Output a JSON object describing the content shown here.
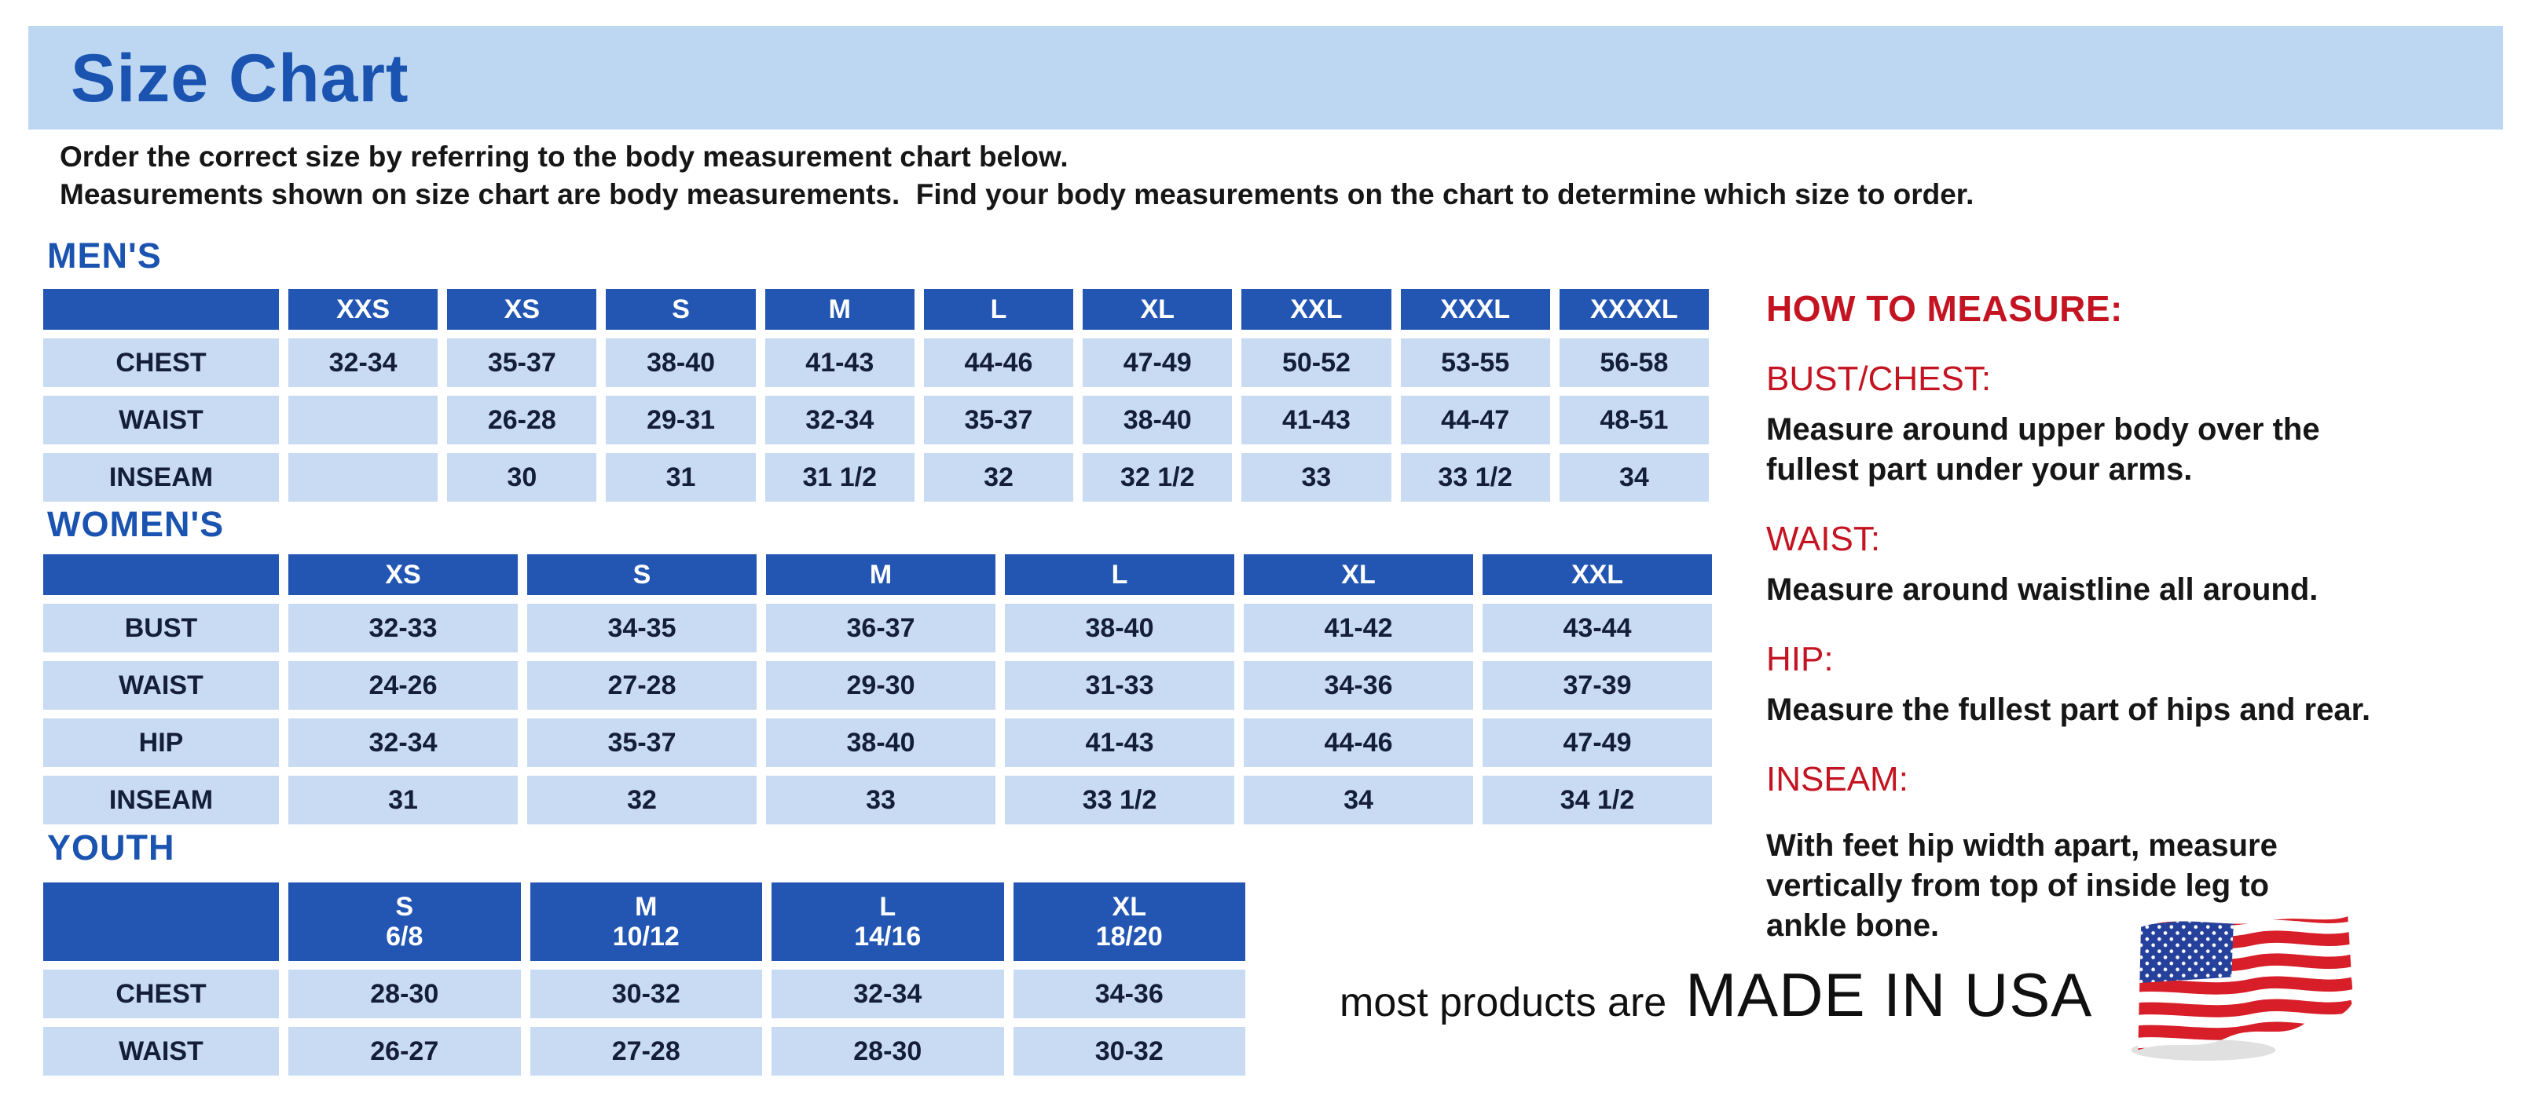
{
  "page": {
    "title": "Size Chart",
    "intro_lines": [
      "Order the correct size by referring to the body measurement chart below.",
      "Measurements shown on size chart are body measurements.  Find your body measurements on the chart to determine which size to order."
    ]
  },
  "tables": {
    "mens": {
      "heading": "MEN'S",
      "columns": [
        "XXS",
        "XS",
        "S",
        "M",
        "L",
        "XL",
        "XXL",
        "XXXL",
        "XXXXL"
      ],
      "rows": [
        {
          "label": "CHEST",
          "values": [
            "32-34",
            "35-37",
            "38-40",
            "41-43",
            "44-46",
            "47-49",
            "50-52",
            "53-55",
            "56-58"
          ]
        },
        {
          "label": "WAIST",
          "values": [
            "",
            "26-28",
            "29-31",
            "32-34",
            "35-37",
            "38-40",
            "41-43",
            "44-47",
            "48-51"
          ]
        },
        {
          "label": "INSEAM",
          "values": [
            "",
            "30",
            "31",
            "31 1/2",
            "32",
            "32 1/2",
            "33",
            "33 1/2",
            "34"
          ]
        }
      ]
    },
    "womens": {
      "heading": "WOMEN'S",
      "columns": [
        "XS",
        "S",
        "M",
        "L",
        "XL",
        "XXL"
      ],
      "rows": [
        {
          "label": "BUST",
          "values": [
            "32-33",
            "34-35",
            "36-37",
            "38-40",
            "41-42",
            "43-44"
          ]
        },
        {
          "label": "WAIST",
          "values": [
            "24-26",
            "27-28",
            "29-30",
            "31-33",
            "34-36",
            "37-39"
          ]
        },
        {
          "label": "HIP",
          "values": [
            "32-34",
            "35-37",
            "38-40",
            "41-43",
            "44-46",
            "47-49"
          ]
        },
        {
          "label": "INSEAM",
          "values": [
            "31",
            "32",
            "33",
            "33 1/2",
            "34",
            "34 1/2"
          ]
        }
      ]
    },
    "youth": {
      "heading": "YOUTH",
      "columns": [
        [
          "S",
          "6/8"
        ],
        [
          "M",
          "10/12"
        ],
        [
          "L",
          "14/16"
        ],
        [
          "XL",
          "18/20"
        ]
      ],
      "rows": [
        {
          "label": "CHEST",
          "values": [
            "28-30",
            "30-32",
            "32-34",
            "34-36"
          ]
        },
        {
          "label": "WAIST",
          "values": [
            "26-27",
            "27-28",
            "28-30",
            "30-32"
          ]
        }
      ]
    }
  },
  "how_to_measure": {
    "heading": "HOW TO MEASURE:",
    "items": [
      {
        "term": "BUST/CHEST:",
        "lines": [
          "Measure around upper body over the",
          "fullest part under your arms."
        ]
      },
      {
        "term": "WAIST:",
        "lines": [
          "Measure around waistline all around."
        ]
      },
      {
        "term": "HIP:",
        "lines": [
          "Measure the fullest part of hips and rear."
        ]
      },
      {
        "term": "INSEAM:",
        "lines": [
          "With feet hip width apart, measure",
          "vertically from top of inside leg to",
          "ankle bone."
        ]
      }
    ]
  },
  "footer": {
    "prefix": "most products are",
    "emphasis": "MADE IN USA",
    "flag_icon": "usa-flag-icon"
  },
  "colors": {
    "banner_bg": "#bdd7f3",
    "title_blue": "#1b53b0",
    "header_blue": "#2356b3",
    "cell_bg": "#c8dbf2",
    "cell_text": "#151e38",
    "accent_red": "#c41422",
    "body_text": "#161616",
    "flag_red": "#d81e28",
    "flag_blue": "#26419b"
  }
}
